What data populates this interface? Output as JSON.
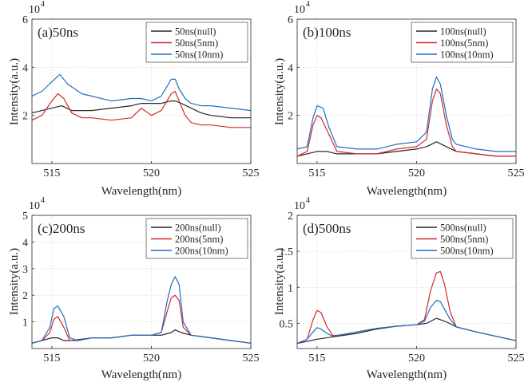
{
  "chart_data": [
    {
      "type": "line",
      "panel_label": "(a)50ns",
      "xlabel": "Wavelength(nm)",
      "ylabel": "Intensity(a.u.)",
      "y_exponent": "10",
      "y_exponent_power": "4",
      "xlim": [
        514,
        525
      ],
      "ylim": [
        0,
        6
      ],
      "xticks": [
        515,
        520,
        525
      ],
      "yticks": [
        2,
        4,
        6
      ],
      "grid": true,
      "legend_position": "top-right",
      "series": [
        {
          "name": "50ns(null)",
          "color": "#262626",
          "x": [
            514,
            514.5,
            515,
            515.5,
            516,
            517,
            518,
            519,
            519.5,
            520,
            520.5,
            521,
            521.2,
            521.5,
            522,
            522.5,
            523,
            524,
            525
          ],
          "y": [
            2.1,
            2.2,
            2.3,
            2.4,
            2.2,
            2.2,
            2.3,
            2.4,
            2.5,
            2.5,
            2.5,
            2.6,
            2.6,
            2.5,
            2.3,
            2.1,
            2.0,
            1.9,
            1.9
          ]
        },
        {
          "name": "50ns(5nm)",
          "color": "#d62728",
          "x": [
            514,
            514.5,
            515,
            515.3,
            515.6,
            516,
            516.5,
            517,
            518,
            519,
            519.5,
            520,
            520.5,
            521,
            521.2,
            521.4,
            521.7,
            522,
            522.5,
            523,
            524,
            525
          ],
          "y": [
            1.8,
            2.0,
            2.6,
            2.9,
            2.7,
            2.1,
            1.9,
            1.9,
            1.8,
            1.9,
            2.3,
            2.0,
            2.2,
            2.9,
            3.0,
            2.6,
            2.0,
            1.7,
            1.6,
            1.6,
            1.5,
            1.5
          ]
        },
        {
          "name": "50ns(10nm)",
          "color": "#1f6fc4",
          "x": [
            514,
            514.5,
            515,
            515.4,
            515.8,
            516.5,
            517,
            518,
            519,
            519.5,
            520,
            520.5,
            521,
            521.2,
            521.4,
            521.7,
            522,
            522.5,
            523,
            524,
            525
          ],
          "y": [
            2.8,
            3.0,
            3.4,
            3.7,
            3.3,
            2.9,
            2.8,
            2.6,
            2.7,
            2.7,
            2.6,
            2.8,
            3.5,
            3.5,
            3.1,
            2.7,
            2.5,
            2.4,
            2.4,
            2.3,
            2.2
          ]
        }
      ],
      "legend": [
        "50ns(null)",
        "50ns(5nm)",
        "50ns(10nm)"
      ]
    },
    {
      "type": "line",
      "panel_label": "(b)100ns",
      "xlabel": "Wavelength(nm)",
      "ylabel": "Intensity(a.u.)",
      "y_exponent": "10",
      "y_exponent_power": "4",
      "xlim": [
        514,
        525
      ],
      "ylim": [
        0,
        6
      ],
      "xticks": [
        515,
        520,
        525
      ],
      "yticks": [
        2,
        4,
        6
      ],
      "grid": true,
      "legend_position": "top-right",
      "series": [
        {
          "name": "100ns(null)",
          "color": "#262626",
          "x": [
            514,
            514.5,
            515,
            515.5,
            516,
            517,
            518,
            519,
            520,
            520.5,
            521,
            521.5,
            522,
            523,
            524,
            525
          ],
          "y": [
            0.3,
            0.4,
            0.5,
            0.5,
            0.4,
            0.4,
            0.4,
            0.5,
            0.6,
            0.7,
            0.9,
            0.7,
            0.5,
            0.4,
            0.3,
            0.3
          ]
        },
        {
          "name": "100ns(5nm)",
          "color": "#d62728",
          "x": [
            514,
            514.5,
            514.8,
            515,
            515.2,
            515.6,
            516,
            517,
            518,
            519,
            520,
            520.5,
            520.8,
            521,
            521.2,
            521.5,
            521.8,
            522,
            523,
            524,
            525
          ],
          "y": [
            0.3,
            0.5,
            1.6,
            2.0,
            1.9,
            1.2,
            0.5,
            0.4,
            0.4,
            0.6,
            0.7,
            1.0,
            2.6,
            3.1,
            2.9,
            1.6,
            0.7,
            0.5,
            0.4,
            0.3,
            0.3
          ]
        },
        {
          "name": "100ns(10nm)",
          "color": "#1f6fc4",
          "x": [
            514,
            514.5,
            514.8,
            515,
            515.3,
            515.6,
            516,
            517,
            518,
            519,
            520,
            520.5,
            520.8,
            521,
            521.2,
            521.5,
            521.8,
            522,
            523,
            524,
            525
          ],
          "y": [
            0.6,
            0.7,
            1.9,
            2.4,
            2.3,
            1.5,
            0.7,
            0.6,
            0.6,
            0.8,
            0.9,
            1.3,
            3.1,
            3.6,
            3.3,
            2.0,
            1.0,
            0.8,
            0.6,
            0.5,
            0.5
          ]
        }
      ],
      "legend": [
        "100ns(null)",
        "100ns(5nm)",
        "100ns(10nm)"
      ]
    },
    {
      "type": "line",
      "panel_label": "(c)200ns",
      "xlabel": "Wavelength(nm)",
      "ylabel": "Intensity(a.u.)",
      "y_exponent": "10",
      "y_exponent_power": "4",
      "xlim": [
        514,
        525
      ],
      "ylim": [
        0,
        5
      ],
      "xticks": [
        515,
        520,
        525
      ],
      "yticks": [
        1,
        2,
        3,
        4,
        5
      ],
      "grid": true,
      "legend_position": "top-right",
      "series": [
        {
          "name": "200ns(null)",
          "color": "#262626",
          "x": [
            514,
            514.5,
            515,
            515.3,
            515.6,
            516,
            517,
            518,
            519,
            520,
            520.5,
            521,
            521.2,
            521.5,
            522,
            523,
            524,
            525
          ],
          "y": [
            0.2,
            0.3,
            0.4,
            0.4,
            0.3,
            0.3,
            0.4,
            0.4,
            0.5,
            0.5,
            0.5,
            0.6,
            0.7,
            0.6,
            0.5,
            0.4,
            0.3,
            0.2
          ]
        },
        {
          "name": "200ns(5nm)",
          "color": "#d62728",
          "x": [
            514,
            514.5,
            514.9,
            515.1,
            515.3,
            515.6,
            515.9,
            516.3,
            517,
            518,
            519,
            520,
            520.5,
            520.8,
            521,
            521.2,
            521.4,
            521.6,
            522,
            523,
            524,
            525
          ],
          "y": [
            0.2,
            0.3,
            0.6,
            1.1,
            1.2,
            0.8,
            0.3,
            0.3,
            0.4,
            0.4,
            0.5,
            0.5,
            0.6,
            1.4,
            1.9,
            2.0,
            1.8,
            0.8,
            0.5,
            0.4,
            0.3,
            0.2
          ]
        },
        {
          "name": "200ns(10nm)",
          "color": "#1f6fc4",
          "x": [
            514,
            514.5,
            514.9,
            515.1,
            515.3,
            515.6,
            515.9,
            516.3,
            517,
            518,
            519,
            520,
            520.5,
            520.8,
            521,
            521.2,
            521.4,
            521.6,
            522,
            523,
            524,
            525
          ],
          "y": [
            0.2,
            0.3,
            0.8,
            1.5,
            1.6,
            1.2,
            0.4,
            0.3,
            0.4,
            0.4,
            0.5,
            0.5,
            0.6,
            1.8,
            2.4,
            2.7,
            2.4,
            1.0,
            0.5,
            0.4,
            0.3,
            0.2
          ]
        }
      ],
      "legend": [
        "200ns(null)",
        "200ns(5nm)",
        "200ns(10nm)"
      ]
    },
    {
      "type": "line",
      "panel_label": "(d)500ns",
      "xlabel": "Wavelength(nm)",
      "ylabel": "Intensity(a.u.)",
      "y_exponent": "10",
      "y_exponent_power": "4",
      "xlim": [
        514,
        525
      ],
      "ylim": [
        0.15,
        2
      ],
      "xticks": [
        515,
        520,
        525
      ],
      "yticks": [
        0.5,
        1,
        1.5,
        2
      ],
      "ytick_labels": [
        "0.5",
        "1",
        "1.5",
        "2"
      ],
      "grid": true,
      "legend_position": "top-right",
      "series": [
        {
          "name": "500ns(null)",
          "color": "#262626",
          "x": [
            514,
            515,
            516,
            517,
            518,
            519,
            520,
            520.5,
            521,
            521.5,
            522,
            523,
            524,
            525
          ],
          "y": [
            0.22,
            0.28,
            0.32,
            0.36,
            0.42,
            0.46,
            0.48,
            0.5,
            0.57,
            0.52,
            0.45,
            0.38,
            0.32,
            0.26
          ]
        },
        {
          "name": "500ns(5nm)",
          "color": "#d62728",
          "x": [
            514,
            514.5,
            514.8,
            515,
            515.2,
            515.5,
            515.8,
            516.2,
            517,
            518,
            519,
            520,
            520.4,
            520.7,
            521,
            521.2,
            521.4,
            521.7,
            522,
            523,
            524,
            525
          ],
          "y": [
            0.22,
            0.28,
            0.55,
            0.68,
            0.65,
            0.45,
            0.33,
            0.34,
            0.38,
            0.43,
            0.46,
            0.48,
            0.55,
            0.95,
            1.2,
            1.22,
            1.05,
            0.65,
            0.45,
            0.38,
            0.32,
            0.26
          ]
        },
        {
          "name": "500ns(10nm)",
          "color": "#1f6fc4",
          "x": [
            514,
            514.5,
            514.8,
            515,
            515.2,
            515.5,
            515.8,
            516.2,
            517,
            518,
            519,
            520,
            520.4,
            520.7,
            521,
            521.2,
            521.4,
            521.7,
            522,
            523,
            524,
            525
          ],
          "y": [
            0.22,
            0.28,
            0.38,
            0.44,
            0.42,
            0.36,
            0.32,
            0.34,
            0.38,
            0.43,
            0.46,
            0.48,
            0.53,
            0.72,
            0.82,
            0.8,
            0.7,
            0.55,
            0.45,
            0.38,
            0.32,
            0.26
          ]
        }
      ],
      "legend": [
        "500ns(null)",
        "500ns(5nm)",
        "500ns(10nm)"
      ]
    }
  ]
}
